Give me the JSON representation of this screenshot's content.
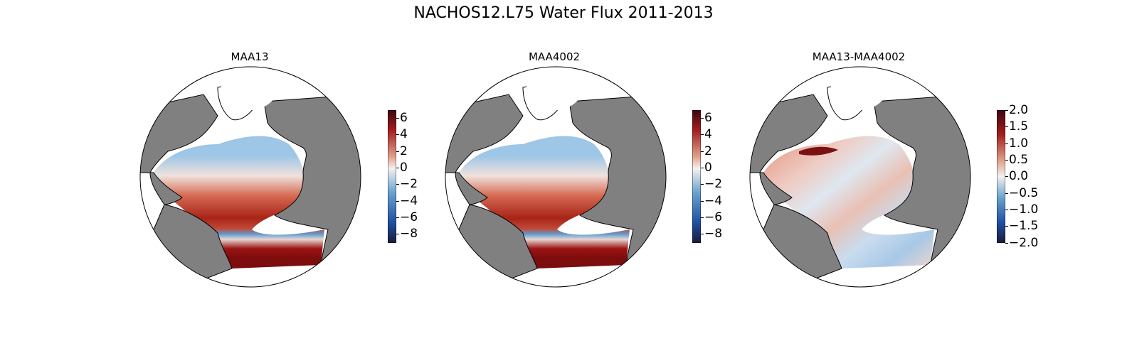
{
  "figure": {
    "title": "NACHOS12.L75 Water Flux 2011-2013"
  },
  "panels": [
    {
      "title": "MAA13",
      "colorbar": {
        "ticks": [
          "6",
          "4",
          "2",
          "0",
          "−2",
          "−4",
          "−6",
          "−8"
        ],
        "range": [
          -9,
          7
        ],
        "cmap": "balance",
        "ocean_pattern": "full"
      }
    },
    {
      "title": "MAA4002",
      "colorbar": {
        "ticks": [
          "6",
          "4",
          "2",
          "0",
          "−2",
          "−4",
          "−6",
          "−8"
        ],
        "range": [
          -9,
          7
        ],
        "cmap": "balance",
        "ocean_pattern": "full"
      }
    },
    {
      "title": "MAA13-MAA4002",
      "colorbar": {
        "ticks": [
          "2.0",
          "1.5",
          "1.0",
          "0.5",
          "0.0",
          "−0.5",
          "−1.0",
          "−1.5",
          "−2.0"
        ],
        "range": [
          -2,
          2
        ],
        "cmap": "balance",
        "ocean_pattern": "diff"
      }
    }
  ],
  "colors": {
    "land": "#808080",
    "coast": "#000000",
    "high": "#6b0a0a",
    "mid_pos": "#c8432e",
    "zero": "#f2f2f2",
    "mid_neg": "#3a7fbf",
    "low": "#14214f"
  }
}
